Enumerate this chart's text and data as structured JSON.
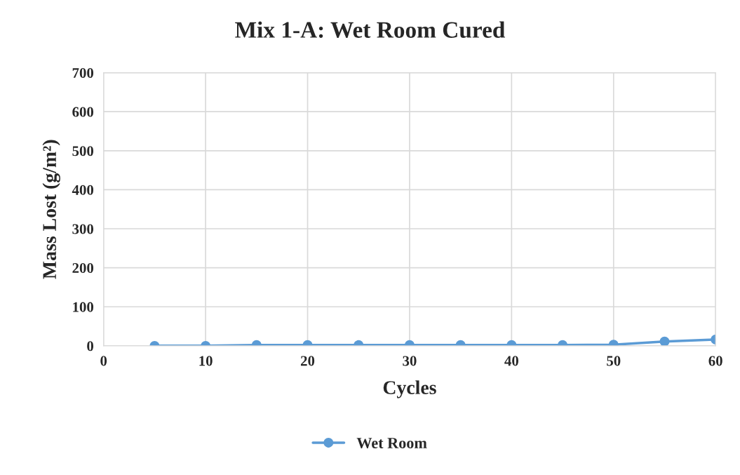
{
  "chart_data": {
    "type": "line",
    "title": "Mix 1-A: Wet Room Cured",
    "xlabel": "Cycles",
    "ylabel": "Mass Lost (g/m²)",
    "x": [
      5,
      10,
      15,
      20,
      25,
      30,
      35,
      40,
      45,
      50,
      55,
      60
    ],
    "series": [
      {
        "name": "Wet Room",
        "color": "#5b9bd5",
        "values": [
          0,
          0,
          2,
          2,
          2,
          2,
          2,
          2,
          2,
          3,
          11,
          16
        ]
      }
    ],
    "xlim": [
      0,
      60
    ],
    "xticks": [
      0,
      10,
      20,
      30,
      40,
      50,
      60
    ],
    "ylim": [
      0,
      700
    ],
    "yticks": [
      0,
      100,
      200,
      300,
      400,
      500,
      600,
      700
    ],
    "grid": true,
    "legend": "bottom",
    "marker": "circle",
    "line_style": "solid"
  }
}
